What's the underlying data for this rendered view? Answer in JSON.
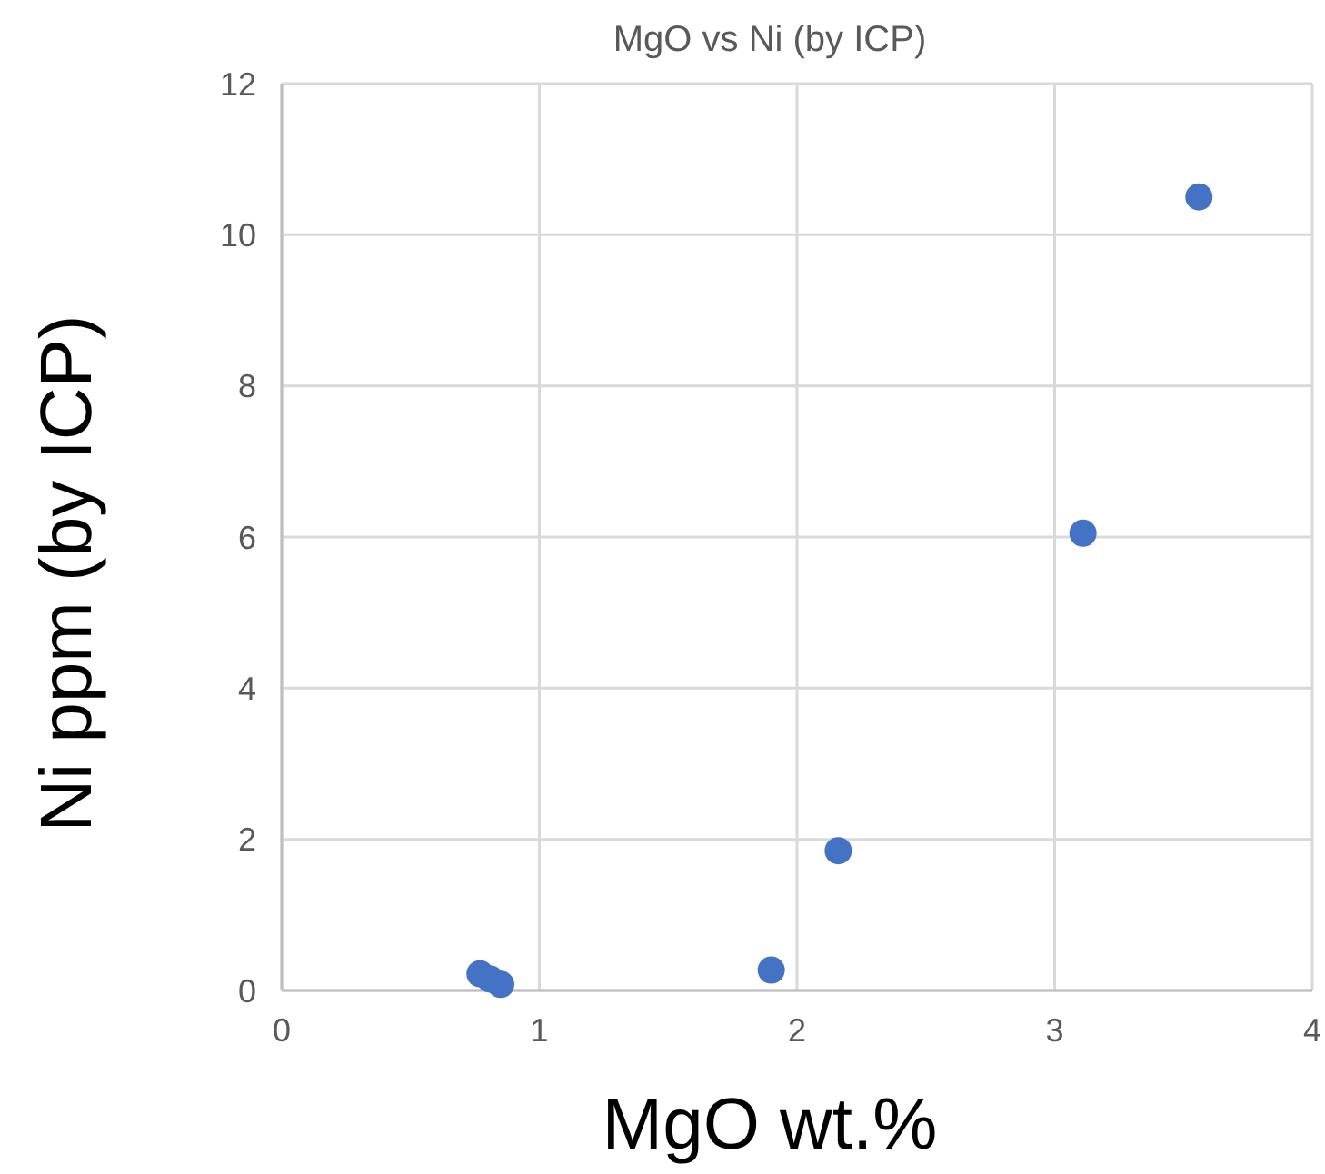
{
  "chart_data": {
    "type": "scatter",
    "title": "MgO vs Ni (by ICP)",
    "xlabel": "MgO wt.%",
    "ylabel": "Ni ppm (by ICP)",
    "x": [
      0.77,
      0.81,
      0.85,
      1.9,
      2.16,
      3.11,
      3.56
    ],
    "series": [
      {
        "color": "#4472c4",
        "values": [
          0.22,
          0.15,
          0.08,
          0.27,
          1.85,
          6.05,
          10.5
        ]
      }
    ],
    "xlim": [
      0,
      4
    ],
    "xticks": [
      0,
      1,
      2,
      3,
      4
    ],
    "ylim": [
      0,
      12
    ],
    "yticks": [
      0,
      2,
      4,
      6,
      8,
      10,
      12
    ],
    "grid": true,
    "marker": "circle"
  }
}
